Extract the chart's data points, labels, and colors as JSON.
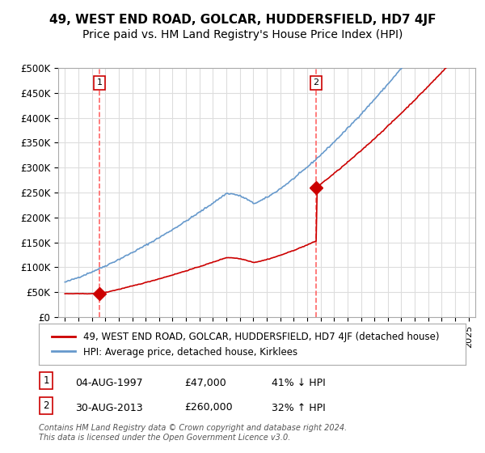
{
  "title": "49, WEST END ROAD, GOLCAR, HUDDERSFIELD, HD7 4JF",
  "subtitle": "Price paid vs. HM Land Registry's House Price Index (HPI)",
  "ylabel": "",
  "ylim": [
    0,
    500000
  ],
  "yticks": [
    0,
    50000,
    100000,
    150000,
    200000,
    250000,
    300000,
    350000,
    400000,
    450000,
    500000
  ],
  "ytick_labels": [
    "£0",
    "£50K",
    "£100K",
    "£150K",
    "£200K",
    "£250K",
    "£300K",
    "£350K",
    "£400K",
    "£450K",
    "£500K"
  ],
  "xlim_start": 1994.5,
  "xlim_end": 2025.5,
  "sale1_date": 1997.58,
  "sale1_price": 47000,
  "sale1_label": "1",
  "sale2_date": 2013.67,
  "sale2_price": 260000,
  "sale2_label": "2",
  "line_color_property": "#cc0000",
  "line_color_hpi": "#6699cc",
  "marker_color": "#cc0000",
  "dashed_line_color": "#ff6666",
  "legend_label_property": "49, WEST END ROAD, GOLCAR, HUDDERSFIELD, HD7 4JF (detached house)",
  "legend_label_hpi": "HPI: Average price, detached house, Kirklees",
  "sale1_info": "1    04-AUG-1997         £47,000         41% ↓ HPI",
  "sale2_info": "2    30-AUG-2013         £260,000       32% ↑ HPI",
  "footer": "Contains HM Land Registry data © Crown copyright and database right 2024.\nThis data is licensed under the Open Government Licence v3.0.",
  "background_color": "#ffffff",
  "grid_color": "#dddddd",
  "title_fontsize": 11,
  "subtitle_fontsize": 10,
  "tick_fontsize": 8.5,
  "legend_fontsize": 9
}
